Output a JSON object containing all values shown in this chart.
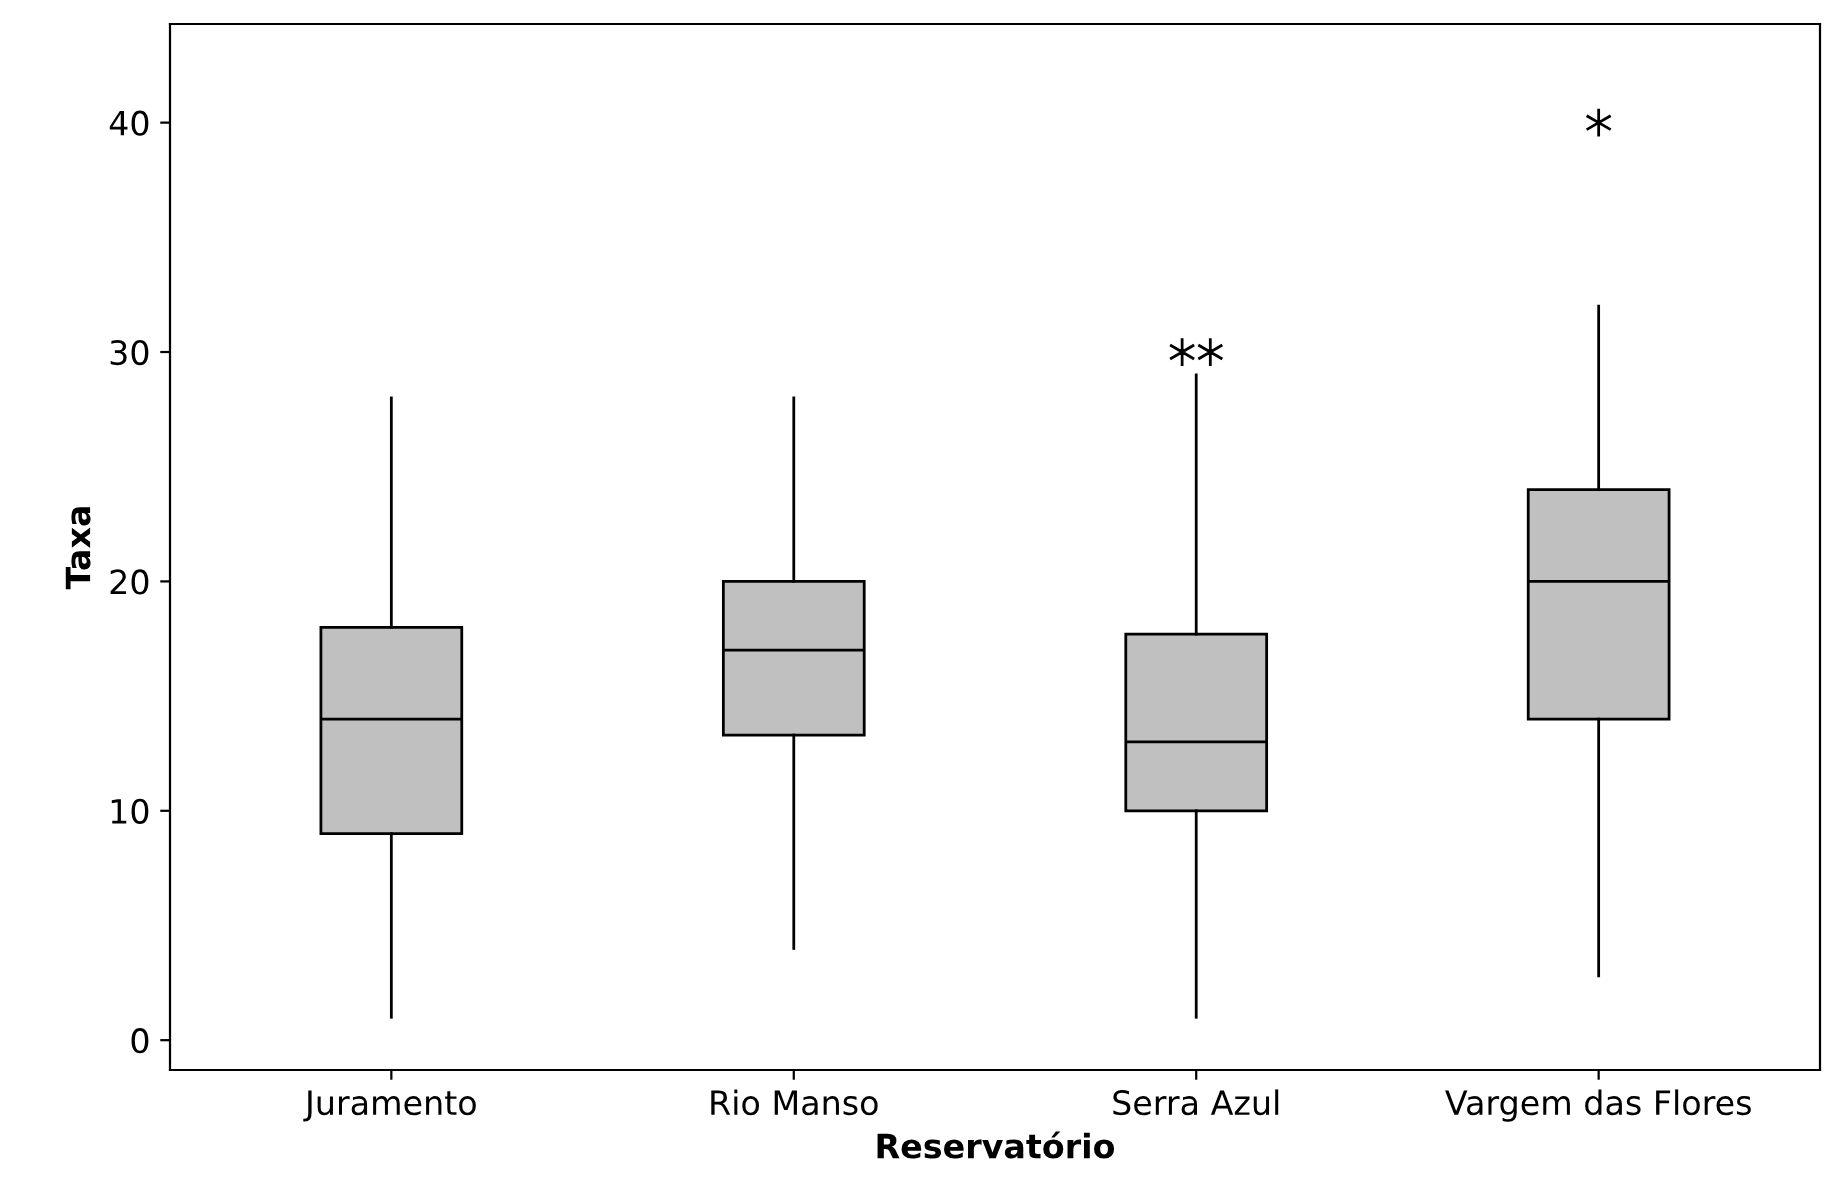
{
  "chart_data": {
    "type": "box",
    "xlabel": "Reservatório",
    "ylabel": "Taxa",
    "categories": [
      "Juramento",
      "Rio Manso",
      "Serra Azul",
      "Vargem das Flores"
    ],
    "color": "#c0c0c0",
    "marker": "star",
    "grid": false,
    "ylim": [
      -1.3,
      44.3
    ],
    "yticks": [
      0,
      10,
      20,
      30,
      40
    ],
    "boxes": [
      {
        "low": 1,
        "q1": 9,
        "median": 14,
        "q3": 18,
        "high": 28
      },
      {
        "low": 4,
        "q1": 13.3,
        "median": 17,
        "q3": 20,
        "high": 28
      },
      {
        "low": 1,
        "q1": 10,
        "median": 13,
        "q3": 17.7,
        "high": 29,
        "outliers": [
          30,
          30
        ]
      },
      {
        "low": 2.8,
        "q1": 14,
        "median": 20,
        "q3": 24,
        "high": 32,
        "outliers": [
          40
        ]
      }
    ]
  }
}
